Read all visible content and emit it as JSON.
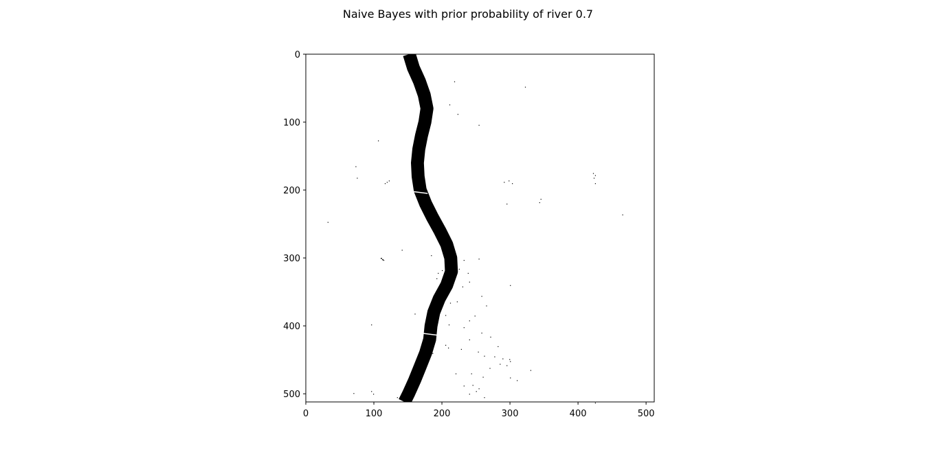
{
  "title": "Naive Bayes with prior probability of river 0.7",
  "chart_data": {
    "type": "heatmap",
    "title": "Naive Bayes with prior probability of river 0.7",
    "xlabel": "",
    "ylabel": "",
    "image_size": [
      512,
      512
    ],
    "colormap": "binary (black = river, white = background)",
    "xlim": [
      0,
      512
    ],
    "ylim": [
      512,
      0
    ],
    "x_ticks": [
      0,
      100,
      200,
      300,
      400,
      500
    ],
    "y_ticks": [
      0,
      100,
      200,
      300,
      400,
      500
    ],
    "x_tick_labels": [
      "0",
      "100",
      "200",
      "300",
      "400",
      "500"
    ],
    "y_tick_labels": [
      "0",
      "100",
      "200",
      "300",
      "400",
      "500"
    ],
    "river_centerline": [
      [
        0,
        152
      ],
      [
        20,
        158
      ],
      [
        40,
        167
      ],
      [
        60,
        174
      ],
      [
        80,
        178
      ],
      [
        100,
        175
      ],
      [
        120,
        170
      ],
      [
        140,
        166
      ],
      [
        160,
        164
      ],
      [
        180,
        165
      ],
      [
        200,
        168
      ],
      [
        220,
        176
      ],
      [
        240,
        186
      ],
      [
        260,
        197
      ],
      [
        280,
        207
      ],
      [
        300,
        213
      ],
      [
        320,
        214
      ],
      [
        340,
        207
      ],
      [
        360,
        196
      ],
      [
        380,
        188
      ],
      [
        400,
        184
      ],
      [
        420,
        182
      ],
      [
        440,
        176
      ],
      [
        460,
        168
      ],
      [
        480,
        160
      ],
      [
        500,
        151
      ],
      [
        512,
        145
      ]
    ],
    "river_width": 19,
    "gaps_in_river": [
      [
        203,
        167
      ],
      [
        412,
        184
      ]
    ],
    "scatter_noise": [
      [
        48,
        322
      ],
      [
        40,
        218
      ],
      [
        74,
        211
      ],
      [
        88,
        223
      ],
      [
        104,
        254
      ],
      [
        127,
        106
      ],
      [
        165,
        73
      ],
      [
        182,
        75
      ],
      [
        188,
        119
      ],
      [
        186,
        122
      ],
      [
        190,
        116
      ],
      [
        186,
        298
      ],
      [
        190,
        303
      ],
      [
        188,
        291
      ],
      [
        213,
        345
      ],
      [
        218,
        343
      ],
      [
        220,
        295
      ],
      [
        175,
        422
      ],
      [
        178,
        425
      ],
      [
        182,
        423
      ],
      [
        190,
        425
      ],
      [
        236,
        465
      ],
      [
        247,
        32
      ],
      [
        300,
        111
      ],
      [
        302,
        112
      ],
      [
        302,
        113
      ],
      [
        303,
        114
      ],
      [
        288,
        141
      ],
      [
        298,
        207
      ],
      [
        301,
        254
      ],
      [
        303,
        232
      ],
      [
        310,
        220
      ],
      [
        316,
        225
      ],
      [
        322,
        238
      ],
      [
        330,
        192
      ],
      [
        340,
        300
      ],
      [
        345,
        195
      ],
      [
        364,
        222
      ],
      [
        382,
        160
      ],
      [
        398,
        96
      ],
      [
        402,
        232
      ],
      [
        406,
        190
      ],
      [
        420,
        240
      ],
      [
        428,
        205
      ],
      [
        434,
        228
      ],
      [
        440,
        186
      ],
      [
        448,
        289
      ],
      [
        452,
        300
      ],
      [
        462,
        270
      ],
      [
        470,
        220
      ],
      [
        476,
        300
      ],
      [
        480,
        310
      ],
      [
        488,
        232
      ],
      [
        496,
        250
      ],
      [
        500,
        240
      ],
      [
        505,
        262
      ],
      [
        318,
        200
      ],
      [
        326,
        205
      ],
      [
        335,
        240
      ],
      [
        356,
        258
      ],
      [
        370,
        265
      ],
      [
        385,
        248
      ],
      [
        410,
        258
      ],
      [
        416,
        271
      ],
      [
        430,
        282
      ],
      [
        444,
        262
      ],
      [
        458,
        295
      ],
      [
        465,
        330
      ],
      [
        475,
        260
      ],
      [
        499,
        70
      ],
      [
        505,
        134
      ],
      [
        513,
        425
      ],
      [
        470,
        243
      ],
      [
        392,
        240
      ],
      [
        398,
        210
      ],
      [
        366,
        212
      ],
      [
        354,
        190
      ],
      [
        300,
        110
      ],
      [
        296,
        184
      ],
      [
        330,
        218
      ],
      [
        322,
        194
      ],
      [
        342,
        230
      ],
      [
        352,
        200
      ],
      [
        384,
        205
      ],
      [
        432,
        209
      ],
      [
        438,
        253
      ],
      [
        445,
        277
      ],
      [
        449,
        299
      ],
      [
        456,
        285
      ],
      [
        487,
        245
      ],
      [
        492,
        254
      ],
      [
        500,
        99
      ],
      [
        496,
        96
      ]
    ]
  }
}
